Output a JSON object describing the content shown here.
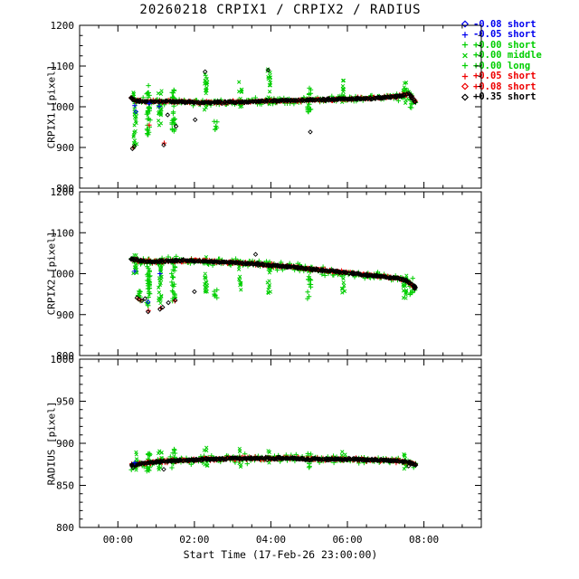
{
  "chart_data": {
    "type": "scatter",
    "title": "20260218 CRPIX1 / CRPIX2 / RADIUS",
    "xlabel": "Start Time (17-Feb-26 23:00:00)",
    "grid": false,
    "legend_position": "top-right",
    "palette": {
      "blue": "#0000EE",
      "green": "#00CE00",
      "red": "#EE0000",
      "black": "#000000"
    },
    "legend": [
      {
        "symbol": "diamond",
        "color": "blue",
        "label": "-0.08 short"
      },
      {
        "symbol": "plus",
        "color": "blue",
        "label": "-0.05 short"
      },
      {
        "symbol": "plus",
        "color": "green",
        "label": "+0.00 short"
      },
      {
        "symbol": "x",
        "color": "green",
        "label": "+0.00 middle"
      },
      {
        "symbol": "plus",
        "color": "green",
        "label": "+0.00 long"
      },
      {
        "symbol": "plus",
        "color": "red",
        "label": "+0.05 short"
      },
      {
        "symbol": "diamond",
        "color": "red",
        "label": "+0.08 short"
      },
      {
        "symbol": "diamond",
        "color": "black",
        "label": "+0.35 short"
      }
    ],
    "xaxis": {
      "min": 0,
      "max": 10.5,
      "minor_step": 0.5,
      "ticks": [
        {
          "value": 1,
          "label": "00:00"
        },
        {
          "value": 3,
          "label": "02:00"
        },
        {
          "value": 5,
          "label": "04:00"
        },
        {
          "value": 7,
          "label": "06:00"
        },
        {
          "value": 9,
          "label": "08:00"
        }
      ]
    },
    "panels": [
      {
        "name": "CRPIX1",
        "ylabel": "CRPIX1 [pixel]",
        "ylim": [
          800,
          1200
        ],
        "yticks": [
          800,
          900,
          1000,
          1100,
          1200
        ],
        "y_minor_step": 25,
        "band": {
          "anchors": [
            [
              1.35,
              1021
            ],
            [
              1.5,
              1014
            ],
            [
              1.8,
              1012
            ],
            [
              2.2,
              1013
            ],
            [
              2.6,
              1012
            ],
            [
              3.0,
              1011
            ],
            [
              3.4,
              1010
            ],
            [
              3.8,
              1011
            ],
            [
              4.2,
              1012
            ],
            [
              4.6,
              1013
            ],
            [
              5.0,
              1014
            ],
            [
              5.4,
              1015
            ],
            [
              5.8,
              1016
            ],
            [
              6.2,
              1017
            ],
            [
              6.6,
              1018
            ],
            [
              7.0,
              1019
            ],
            [
              7.4,
              1020
            ],
            [
              7.8,
              1022
            ],
            [
              8.2,
              1024
            ],
            [
              8.45,
              1027
            ],
            [
              8.6,
              1032
            ],
            [
              8.72,
              1020
            ],
            [
              8.8,
              1008
            ]
          ],
          "spreads": {
            "green": 9,
            "red": 3.3,
            "black": 2.2
          }
        },
        "clusters": [
          {
            "t": 1.45,
            "y0": 900,
            "y1": 1045,
            "n": 30,
            "symbol": "x"
          },
          {
            "t": 1.8,
            "y0": 930,
            "y1": 1058,
            "n": 34,
            "symbol": "plus"
          },
          {
            "t": 2.1,
            "y0": 948,
            "y1": 1040,
            "n": 24,
            "symbol": "x"
          },
          {
            "t": 2.45,
            "y0": 938,
            "y1": 1042,
            "n": 26,
            "symbol": "plus"
          },
          {
            "t": 3.3,
            "y0": 988,
            "y1": 1090,
            "n": 20,
            "symbol": "x"
          },
          {
            "t": 3.55,
            "y0": 938,
            "y1": 965,
            "n": 6,
            "symbol": "plus"
          },
          {
            "t": 4.2,
            "y0": 993,
            "y1": 1065,
            "n": 16,
            "symbol": "x"
          },
          {
            "t": 4.95,
            "y0": 998,
            "y1": 1093,
            "n": 18,
            "symbol": "x"
          },
          {
            "t": 6.0,
            "y0": 983,
            "y1": 1046,
            "n": 16,
            "symbol": "plus"
          },
          {
            "t": 6.9,
            "y0": 1008,
            "y1": 1065,
            "n": 12,
            "symbol": "x"
          },
          {
            "t": 8.5,
            "y0": 1000,
            "y1": 1060,
            "n": 16,
            "symbol": "x"
          },
          {
            "t": 8.68,
            "y0": 995,
            "y1": 1035,
            "n": 10,
            "symbol": "plus"
          }
        ],
        "points": {
          "black": [
            [
              1.38,
              897,
              "diamond"
            ],
            [
              1.43,
              903,
              "diamond"
            ],
            [
              2.2,
              906,
              "diamond"
            ],
            [
              2.3,
              980,
              "diamond"
            ],
            [
              2.52,
              952,
              "diamond"
            ],
            [
              3.02,
              968,
              "diamond"
            ],
            [
              3.28,
              1086,
              "diamond"
            ],
            [
              4.93,
              1090,
              "diamond"
            ],
            [
              6.03,
              938,
              "diamond"
            ]
          ],
          "red": [
            [
              1.4,
              900,
              "plus"
            ],
            [
              1.82,
              955,
              "plus"
            ],
            [
              2.21,
              911,
              "plus"
            ]
          ],
          "blue": [
            [
              1.44,
              1003,
              "plus"
            ],
            [
              1.47,
              988,
              "diamond"
            ],
            [
              1.82,
              1008,
              "plus"
            ],
            [
              2.08,
              1001,
              "plus"
            ]
          ]
        }
      },
      {
        "name": "CRPIX2",
        "ylabel": "CRPIX2 [pixel]",
        "ylim": [
          800,
          1200
        ],
        "yticks": [
          800,
          900,
          1000,
          1100,
          1200
        ],
        "y_minor_step": 25,
        "band": {
          "anchors": [
            [
              1.35,
              1036
            ],
            [
              1.6,
              1031
            ],
            [
              2.0,
              1029
            ],
            [
              2.4,
              1031
            ],
            [
              2.8,
              1032
            ],
            [
              3.2,
              1031
            ],
            [
              3.6,
              1029
            ],
            [
              4.0,
              1027
            ],
            [
              4.4,
              1025
            ],
            [
              4.8,
              1022
            ],
            [
              5.2,
              1019
            ],
            [
              5.6,
              1016
            ],
            [
              6.0,
              1012
            ],
            [
              6.4,
              1008
            ],
            [
              6.8,
              1004
            ],
            [
              7.2,
              1000
            ],
            [
              7.6,
              996
            ],
            [
              8.0,
              992
            ],
            [
              8.3,
              989
            ],
            [
              8.5,
              985
            ],
            [
              8.65,
              976
            ],
            [
              8.8,
              963
            ]
          ],
          "spreads": {
            "green": 9,
            "red": 3.3,
            "black": 2.2
          }
        },
        "clusters": [
          {
            "t": 1.45,
            "y0": 995,
            "y1": 1048,
            "n": 18,
            "symbol": "x"
          },
          {
            "t": 1.55,
            "y0": 933,
            "y1": 958,
            "n": 10,
            "symbol": "plus"
          },
          {
            "t": 1.8,
            "y0": 905,
            "y1": 1040,
            "n": 34,
            "symbol": "plus"
          },
          {
            "t": 2.1,
            "y0": 915,
            "y1": 1035,
            "n": 24,
            "symbol": "x"
          },
          {
            "t": 2.45,
            "y0": 928,
            "y1": 1038,
            "n": 24,
            "symbol": "plus"
          },
          {
            "t": 3.3,
            "y0": 950,
            "y1": 1042,
            "n": 18,
            "symbol": "x"
          },
          {
            "t": 3.55,
            "y0": 940,
            "y1": 962,
            "n": 6,
            "symbol": "plus"
          },
          {
            "t": 4.2,
            "y0": 958,
            "y1": 1032,
            "n": 14,
            "symbol": "x"
          },
          {
            "t": 4.95,
            "y0": 950,
            "y1": 1030,
            "n": 16,
            "symbol": "x"
          },
          {
            "t": 6.0,
            "y0": 938,
            "y1": 1012,
            "n": 14,
            "symbol": "plus"
          },
          {
            "t": 6.9,
            "y0": 952,
            "y1": 1005,
            "n": 10,
            "symbol": "x"
          },
          {
            "t": 8.5,
            "y0": 938,
            "y1": 1002,
            "n": 18,
            "symbol": "x"
          },
          {
            "t": 8.68,
            "y0": 948,
            "y1": 990,
            "n": 10,
            "symbol": "plus"
          }
        ],
        "points": {
          "black": [
            [
              1.5,
              941,
              "diamond"
            ],
            [
              1.56,
              937,
              "diamond"
            ],
            [
              1.63,
              934,
              "diamond"
            ],
            [
              1.71,
              939,
              "diamond"
            ],
            [
              1.79,
              907,
              "diamond"
            ],
            [
              2.1,
              913,
              "diamond"
            ],
            [
              2.17,
              918,
              "diamond"
            ],
            [
              2.32,
              929,
              "diamond"
            ],
            [
              2.5,
              935,
              "diamond"
            ],
            [
              3.0,
              956,
              "diamond"
            ],
            [
              4.6,
              1047,
              "diamond"
            ]
          ],
          "red": [
            [
              1.52,
              939,
              "plus"
            ],
            [
              1.59,
              935,
              "plus"
            ],
            [
              1.8,
              910,
              "plus"
            ],
            [
              2.12,
              916,
              "plus"
            ],
            [
              2.49,
              933,
              "plus"
            ]
          ],
          "blue": [
            [
              1.44,
              1006,
              "plus"
            ],
            [
              1.79,
              931,
              "diamond"
            ],
            [
              2.1,
              1000,
              "plus"
            ]
          ]
        }
      },
      {
        "name": "RADIUS",
        "ylabel": "RADIUS [pixel]",
        "ylim": [
          800,
          1000
        ],
        "yticks": [
          800,
          850,
          900,
          950,
          1000
        ],
        "y_minor_step": 10,
        "band": {
          "anchors": [
            [
              1.35,
              874
            ],
            [
              1.6,
              876
            ],
            [
              2.0,
              878
            ],
            [
              2.4,
              879
            ],
            [
              2.8,
              880
            ],
            [
              3.2,
              881
            ],
            [
              3.6,
              881
            ],
            [
              4.0,
              882
            ],
            [
              4.4,
              882
            ],
            [
              4.8,
              882
            ],
            [
              5.2,
              882
            ],
            [
              5.6,
              882
            ],
            [
              6.0,
              881
            ],
            [
              6.4,
              881
            ],
            [
              6.8,
              881
            ],
            [
              7.2,
              881
            ],
            [
              7.6,
              880
            ],
            [
              8.0,
              880
            ],
            [
              8.3,
              879
            ],
            [
              8.5,
              878
            ],
            [
              8.65,
              877
            ],
            [
              8.8,
              875
            ]
          ],
          "spreads": {
            "green": 4.5,
            "red": 1.7,
            "black": 1.2
          }
        },
        "clusters": [
          {
            "t": 1.45,
            "y0": 868,
            "y1": 890,
            "n": 10,
            "symbol": "x"
          },
          {
            "t": 1.8,
            "y0": 866,
            "y1": 894,
            "n": 14,
            "symbol": "plus"
          },
          {
            "t": 2.1,
            "y0": 868,
            "y1": 892,
            "n": 10,
            "symbol": "x"
          },
          {
            "t": 2.45,
            "y0": 868,
            "y1": 893,
            "n": 10,
            "symbol": "plus"
          },
          {
            "t": 3.3,
            "y0": 872,
            "y1": 895,
            "n": 8,
            "symbol": "x"
          },
          {
            "t": 4.2,
            "y0": 872,
            "y1": 894,
            "n": 8,
            "symbol": "x"
          },
          {
            "t": 4.95,
            "y0": 872,
            "y1": 895,
            "n": 8,
            "symbol": "x"
          },
          {
            "t": 6.0,
            "y0": 870,
            "y1": 893,
            "n": 8,
            "symbol": "plus"
          },
          {
            "t": 6.9,
            "y0": 872,
            "y1": 892,
            "n": 6,
            "symbol": "x"
          },
          {
            "t": 8.5,
            "y0": 868,
            "y1": 890,
            "n": 10,
            "symbol": "x"
          }
        ],
        "points": {
          "black": [
            [
              1.4,
              871,
              "diamond"
            ],
            [
              2.2,
              869,
              "diamond"
            ],
            [
              8.6,
              873,
              "diamond"
            ]
          ],
          "red": [],
          "blue": [
            [
              1.44,
              877,
              "plus"
            ]
          ]
        }
      }
    ]
  }
}
